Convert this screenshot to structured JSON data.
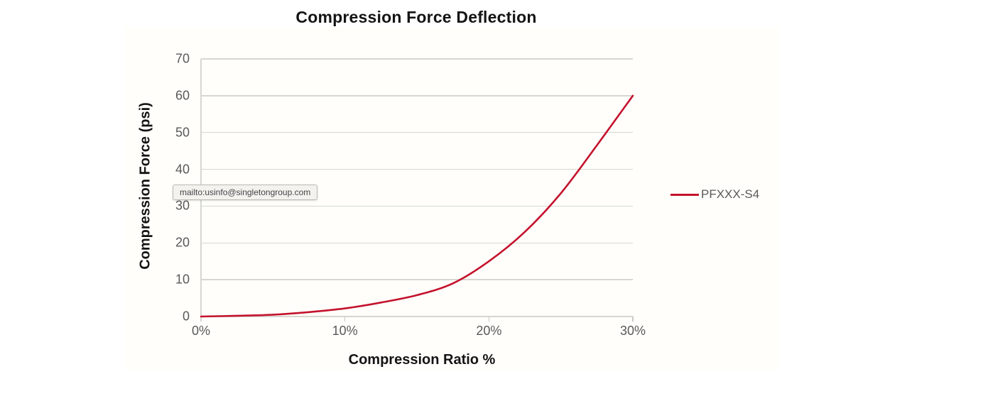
{
  "tooltip": {
    "text": "mailto:usinfo@singletongroup.com"
  },
  "colors": {
    "series_red": "#c4122d",
    "gridline": "#d7d7d1",
    "tick_text": "#595959",
    "title_text": "#141414",
    "tooltip_bg": "#f3f2ef"
  },
  "legend": {
    "items": [
      {
        "label": "PFXXX-S4",
        "color": "#c4122d"
      }
    ]
  },
  "chart_data": {
    "type": "line",
    "title": "Compression Force Deflection",
    "xlabel": "Compression Ratio %",
    "ylabel": "Compression Force (psi)",
    "x_tick_labels": [
      "0%",
      "10%",
      "20%",
      "30%"
    ],
    "x_tick_values": [
      0,
      10,
      20,
      30
    ],
    "y_ticks": [
      0,
      10,
      20,
      30,
      40,
      50,
      60,
      70
    ],
    "xlim": [
      0,
      30
    ],
    "ylim": [
      0,
      70
    ],
    "grid": "horizontal",
    "legend_position": "right-middle",
    "series": [
      {
        "name": "PFXXX-S4",
        "color": "#c4122d",
        "x": [
          0,
          2.5,
          5,
          7.5,
          10,
          12.5,
          15,
          17.5,
          20,
          22.5,
          25,
          27.5,
          30
        ],
        "y": [
          0,
          0.2,
          0.5,
          1.2,
          2.2,
          3.8,
          5.8,
          9,
          15,
          23,
          33.5,
          46.5,
          60
        ]
      }
    ]
  }
}
